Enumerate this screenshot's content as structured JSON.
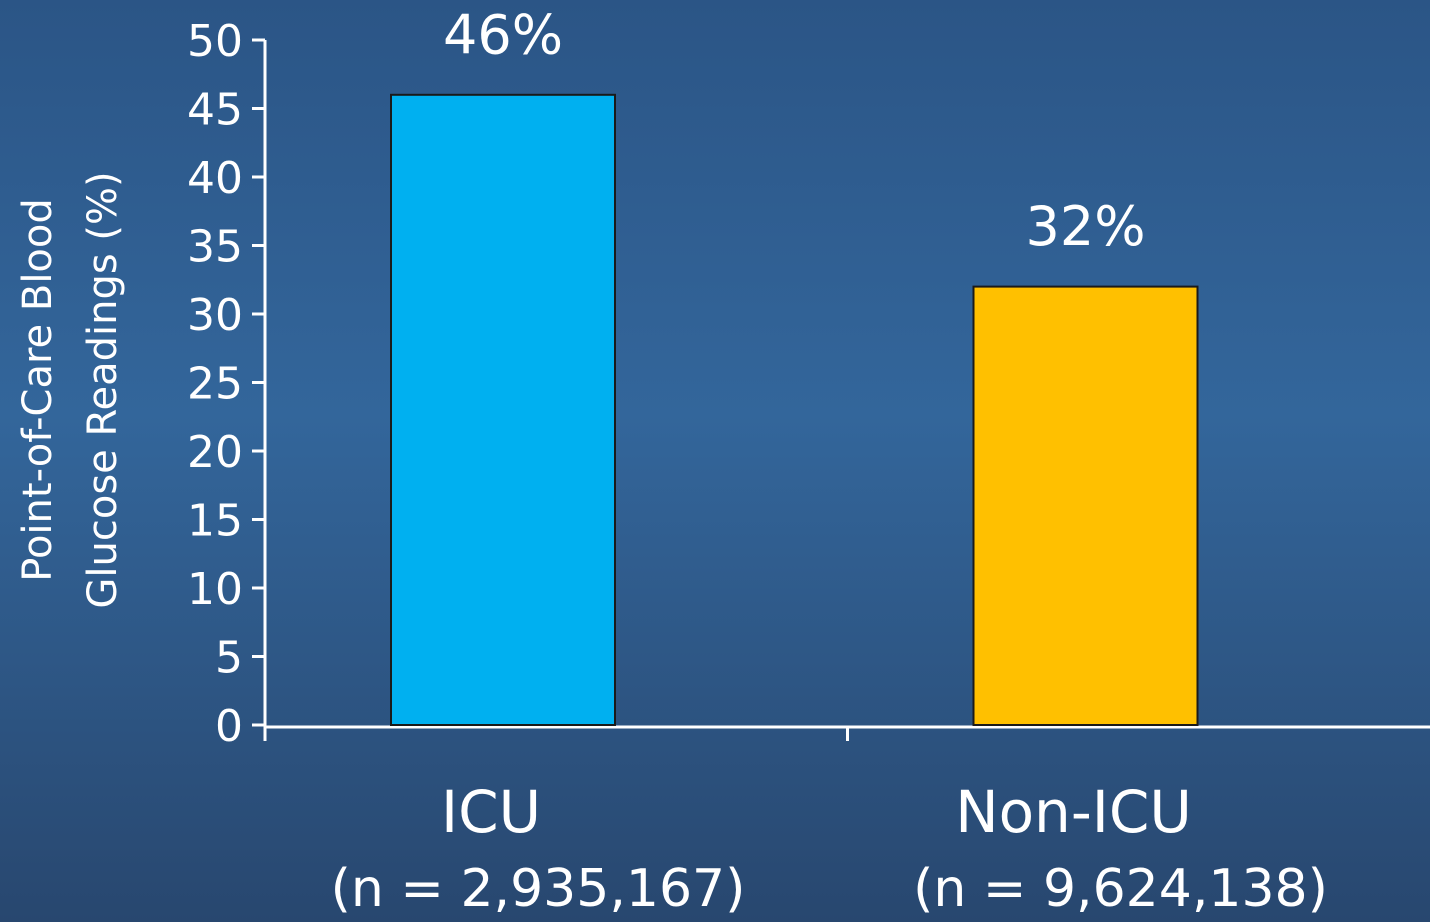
{
  "chart_data": {
    "type": "bar",
    "y_label_lines": [
      "Point-of-Care Blood",
      "Glucose Readings (%)"
    ],
    "categories": [
      "ICU",
      "Non-ICU"
    ],
    "sample_sizes": [
      "(n = 2,935,167)",
      "(n = 9,624,138)"
    ],
    "values": [
      46,
      32
    ],
    "value_labels": [
      "46%",
      "32%"
    ],
    "colors": [
      "#00b0f0",
      "#ffc000"
    ],
    "ylim": [
      0,
      50
    ],
    "yticks": [
      0,
      5,
      10,
      15,
      20,
      25,
      30,
      35,
      40,
      45,
      50
    ],
    "grid": false
  }
}
